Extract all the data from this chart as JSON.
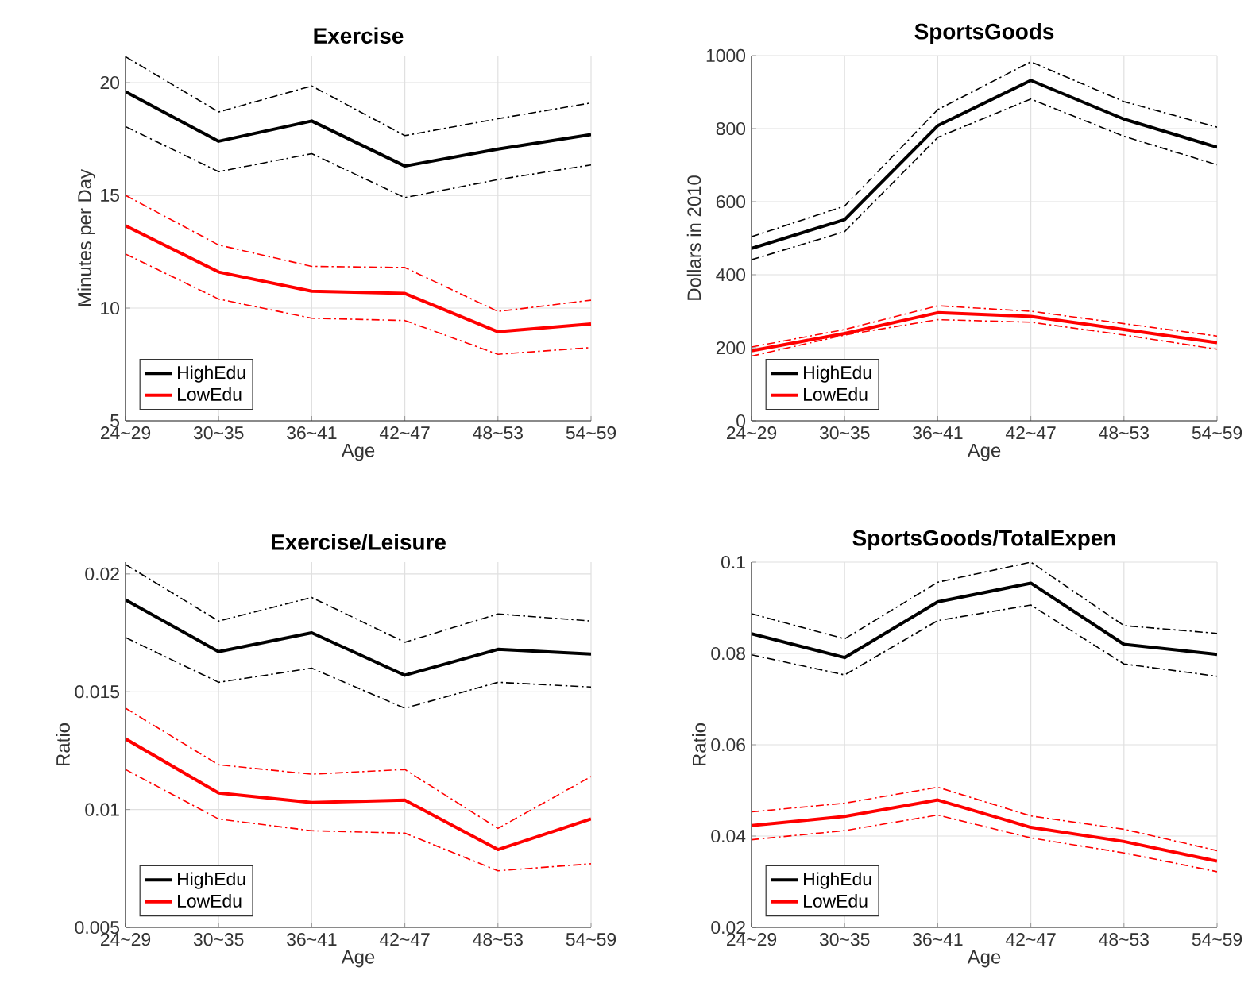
{
  "chart_data": [
    {
      "type": "line",
      "title": "Exercise",
      "xlabel": "Age",
      "ylabel": "Minutes per Day",
      "categories": [
        "24~29",
        "30~35",
        "36~41",
        "42~47",
        "48~53",
        "54~59"
      ],
      "ylim": [
        5,
        21.2
      ],
      "yticks": [
        5,
        10,
        15,
        20
      ],
      "grid": true,
      "legend": "bottom left",
      "series": [
        {
          "name": "HighEdu",
          "color": "#000000",
          "values": [
            19.6,
            17.4,
            18.3,
            16.3,
            17.05,
            17.7
          ]
        },
        {
          "color": "#000000",
          "line_style": "dashed",
          "values": [
            21.15,
            18.7,
            19.85,
            17.65,
            18.4,
            19.1
          ]
        },
        {
          "color": "#000000",
          "line_style": "dashed",
          "values": [
            18.05,
            16.05,
            16.85,
            14.9,
            15.7,
            16.35
          ]
        },
        {
          "name": "LowEdu",
          "color": "#ff0000",
          "values": [
            13.65,
            11.6,
            10.75,
            10.65,
            8.95,
            9.3
          ]
        },
        {
          "color": "#ff0000",
          "line_style": "dashed",
          "values": [
            15.0,
            12.8,
            11.85,
            11.8,
            9.85,
            10.35
          ]
        },
        {
          "color": "#ff0000",
          "line_style": "dashed",
          "values": [
            12.4,
            10.4,
            9.55,
            9.45,
            7.95,
            8.25
          ]
        }
      ]
    },
    {
      "type": "line",
      "title": "SportsGoods",
      "xlabel": "Age",
      "ylabel": "Dollars in 2010",
      "categories": [
        "24~29",
        "30~35",
        "36~41",
        "42~47",
        "48~53",
        "54~59"
      ],
      "ylim": [
        0,
        1000
      ],
      "yticks": [
        0,
        200,
        400,
        600,
        800,
        1000
      ],
      "grid": true,
      "legend": "bottom left",
      "series": [
        {
          "name": "HighEdu",
          "color": "#000000",
          "values": [
            472,
            551,
            808,
            932,
            826,
            749
          ]
        },
        {
          "color": "#000000",
          "line_style": "dashed",
          "values": [
            504,
            588,
            852,
            983,
            874,
            804
          ]
        },
        {
          "color": "#000000",
          "line_style": "dashed",
          "values": [
            441,
            518,
            776,
            881,
            779,
            701
          ]
        },
        {
          "name": "LowEdu",
          "color": "#ff0000",
          "values": [
            192,
            239,
            296,
            286,
            250,
            214
          ]
        },
        {
          "color": "#ff0000",
          "line_style": "dashed",
          "values": [
            202,
            250,
            315,
            300,
            266,
            232
          ]
        },
        {
          "color": "#ff0000",
          "line_style": "dashed",
          "values": [
            177,
            235,
            277,
            270,
            235,
            196
          ]
        }
      ]
    },
    {
      "type": "line",
      "title": "Exercise/Leisure",
      "xlabel": "Age",
      "ylabel": "Ratio",
      "categories": [
        "24~29",
        "30~35",
        "36~41",
        "42~47",
        "48~53",
        "54~59"
      ],
      "ylim": [
        0.005,
        0.0205
      ],
      "yticks": [
        0.005,
        0.01,
        0.015,
        0.02
      ],
      "grid": true,
      "legend": "bottom left",
      "series": [
        {
          "name": "HighEdu",
          "color": "#000000",
          "values": [
            0.0189,
            0.0167,
            0.0175,
            0.0157,
            0.0168,
            0.0166
          ]
        },
        {
          "color": "#000000",
          "line_style": "dashed",
          "values": [
            0.0204,
            0.018,
            0.019,
            0.0171,
            0.0183,
            0.018
          ]
        },
        {
          "color": "#000000",
          "line_style": "dashed",
          "values": [
            0.0173,
            0.0154,
            0.016,
            0.0143,
            0.0154,
            0.0152
          ]
        },
        {
          "name": "LowEdu",
          "color": "#ff0000",
          "values": [
            0.013,
            0.0107,
            0.0103,
            0.0104,
            0.0083,
            0.0096
          ]
        },
        {
          "color": "#ff0000",
          "line_style": "dashed",
          "values": [
            0.0143,
            0.0119,
            0.0115,
            0.0117,
            0.0092,
            0.0114
          ]
        },
        {
          "color": "#ff0000",
          "line_style": "dashed",
          "values": [
            0.0117,
            0.0096,
            0.0091,
            0.009,
            0.0074,
            0.0077
          ]
        }
      ]
    },
    {
      "type": "line",
      "title": "SportsGoods/TotalExpen",
      "xlabel": "Age",
      "ylabel": "Ratio",
      "categories": [
        "24~29",
        "30~35",
        "36~41",
        "42~47",
        "48~53",
        "54~59"
      ],
      "ylim": [
        0.02,
        0.1
      ],
      "yticks": [
        0.02,
        0.04,
        0.06,
        0.08,
        0.1
      ],
      "grid": true,
      "legend": "bottom left",
      "series": [
        {
          "name": "HighEdu",
          "color": "#000000",
          "values": [
            0.0843,
            0.0791,
            0.0913,
            0.0954,
            0.082,
            0.0798
          ]
        },
        {
          "color": "#000000",
          "line_style": "dashed",
          "values": [
            0.0887,
            0.0832,
            0.0956,
            0.1,
            0.0861,
            0.0844
          ]
        },
        {
          "color": "#000000",
          "line_style": "dashed",
          "values": [
            0.0797,
            0.0753,
            0.0872,
            0.0906,
            0.0777,
            0.075
          ]
        },
        {
          "name": "LowEdu",
          "color": "#ff0000",
          "values": [
            0.0423,
            0.0443,
            0.0479,
            0.0419,
            0.0388,
            0.0345
          ]
        },
        {
          "color": "#ff0000",
          "line_style": "dashed",
          "values": [
            0.0453,
            0.0472,
            0.0507,
            0.0444,
            0.0415,
            0.0368
          ]
        },
        {
          "color": "#ff0000",
          "line_style": "dashed",
          "values": [
            0.0392,
            0.0412,
            0.0446,
            0.0396,
            0.0363,
            0.0322
          ]
        }
      ]
    }
  ]
}
